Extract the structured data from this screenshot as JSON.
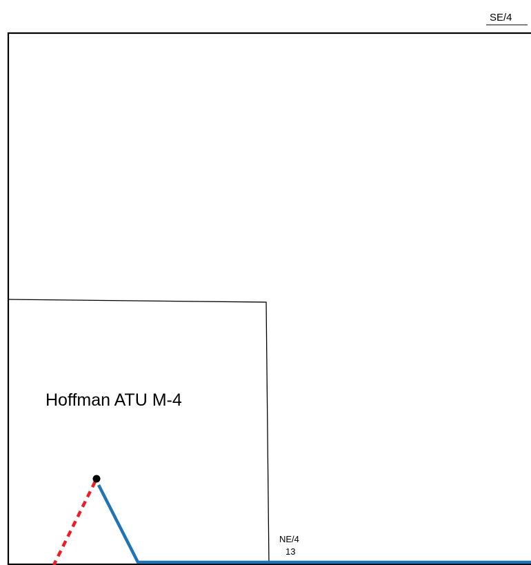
{
  "map": {
    "labels": {
      "top_right_quarter": "SE/4",
      "parcel_name": "Hoffman ATU M-4",
      "bottom_quarter": "NE/4",
      "bottom_section": "13"
    },
    "colors": {
      "boundary": "#000000",
      "pipeline_solid": "#1f73b7",
      "pipeline_dashed": "#ee1c24",
      "well_point": "#000000",
      "background": "#ffffff"
    },
    "legend_items": []
  }
}
